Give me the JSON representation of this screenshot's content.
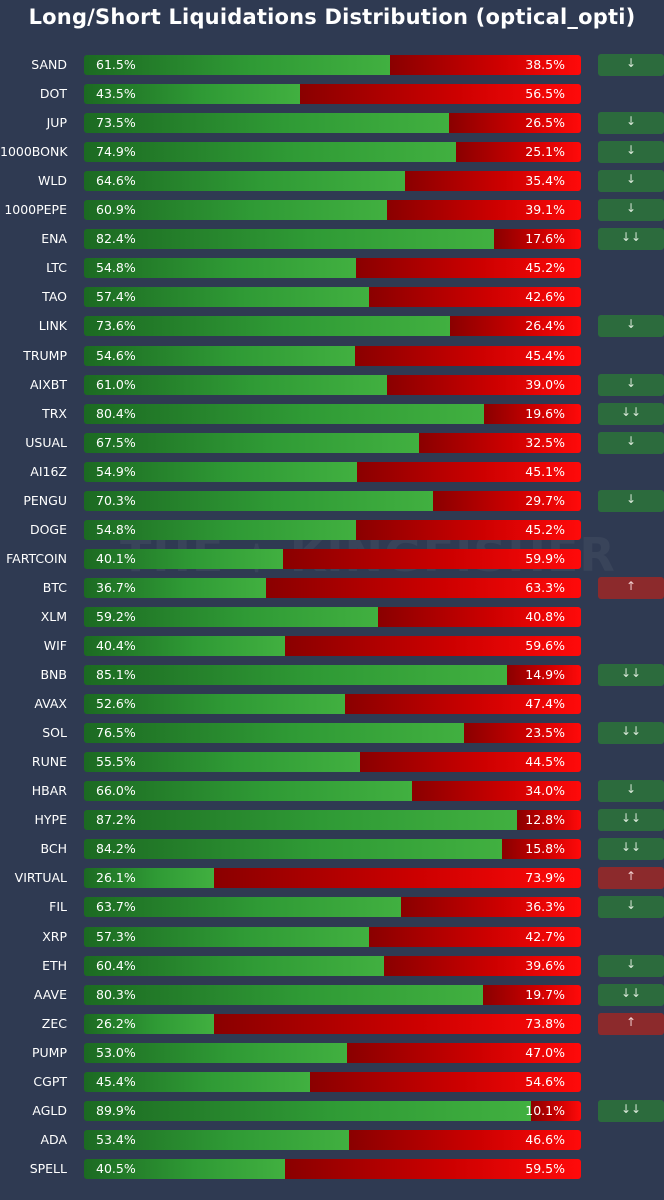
{
  "chart_data": {
    "type": "bar",
    "stacked": "horizontal-100-percent",
    "title": "Long/Short Liquidations Distribution (optical_opti)",
    "categories": [
      "SAND",
      "DOT",
      "JUP",
      "1000BONK",
      "WLD",
      "1000PEPE",
      "ENA",
      "LTC",
      "TAO",
      "LINK",
      "TRUMP",
      "AIXBT",
      "TRX",
      "USUAL",
      "AI16Z",
      "PENGU",
      "DOGE",
      "FARTCOIN",
      "BTC",
      "XLM",
      "WIF",
      "BNB",
      "AVAX",
      "SOL",
      "RUNE",
      "HBAR",
      "HYPE",
      "BCH",
      "VIRTUAL",
      "FIL",
      "XRP",
      "ETH",
      "AAVE",
      "ZEC",
      "PUMP",
      "CGPT",
      "AGLD",
      "ADA",
      "SPELL"
    ],
    "long_pct": [
      61.5,
      43.5,
      73.5,
      74.9,
      64.6,
      60.9,
      82.4,
      54.8,
      57.4,
      73.6,
      54.6,
      61.0,
      80.4,
      67.5,
      54.9,
      70.3,
      54.8,
      40.1,
      36.7,
      59.2,
      40.4,
      85.1,
      52.6,
      76.5,
      55.5,
      66.0,
      87.2,
      84.2,
      26.1,
      63.7,
      57.3,
      60.4,
      80.3,
      26.2,
      53.0,
      45.4,
      89.9,
      53.4,
      40.5
    ],
    "short_pct": [
      38.5,
      56.5,
      26.5,
      25.1,
      35.4,
      39.1,
      17.6,
      45.2,
      42.6,
      26.4,
      45.4,
      39.0,
      19.6,
      32.5,
      45.1,
      29.7,
      45.2,
      59.9,
      63.3,
      40.8,
      59.6,
      14.9,
      47.4,
      23.5,
      44.5,
      34.0,
      12.8,
      15.8,
      73.9,
      36.3,
      42.7,
      39.6,
      19.7,
      73.8,
      47.0,
      54.6,
      10.1,
      46.6,
      59.5
    ],
    "signals": [
      "↓",
      "",
      "↓",
      "↓",
      "↓",
      "↓",
      "↓↓",
      "",
      "",
      "↓",
      "",
      "↓",
      "↓↓",
      "↓",
      "",
      "↓",
      "",
      "",
      "↑",
      "",
      "",
      "↓↓",
      "",
      "↓↓",
      "",
      "↓",
      "↓↓",
      "↓↓",
      "↑",
      "↓",
      "",
      "↓",
      "↓↓",
      "↑",
      "",
      "",
      "↓↓",
      "",
      ""
    ],
    "colors": {
      "background": "#2f3a52",
      "long": "#3aa63a",
      "short": "#e00000",
      "signal_down": "#2c6b3d",
      "signal_up": "#8c2a2c"
    },
    "xlim": [
      0,
      100
    ],
    "grid": false,
    "legend": "none"
  }
}
